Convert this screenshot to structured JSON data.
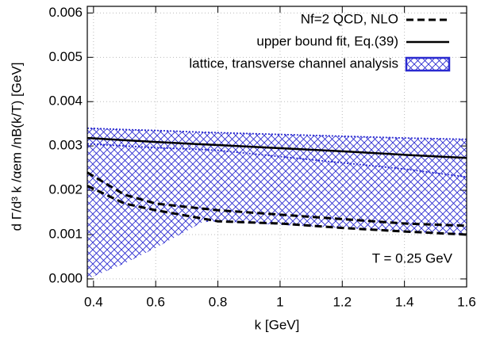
{
  "chart_data": {
    "type": "line",
    "xlabel": "k [GeV]",
    "ylabel": "d Γ/d³ k /αem /nB(k/T) [GeV]",
    "annotation": "T = 0.25 GeV",
    "xlim": [
      0.38,
      1.6
    ],
    "xticks": [
      0.4,
      0.6,
      0.8,
      1,
      1.2,
      1.4,
      1.6
    ],
    "ylim": [
      -0.00018,
      0.00615
    ],
    "yticks": [
      {
        "value": 0,
        "label": "0.000"
      },
      {
        "value": 0.001,
        "label": "0.001"
      },
      {
        "value": 0.002,
        "label": "0.002"
      },
      {
        "value": 0.003,
        "label": "0.003"
      },
      {
        "value": 0.004,
        "label": "0.004"
      },
      {
        "value": 0.005,
        "label": "0.005"
      },
      {
        "value": 0.006,
        "label": "0.006"
      }
    ],
    "grid": true,
    "legend": "top-right",
    "series": [
      {
        "name": "Nf=2 QCD, NLO",
        "style": "dashed",
        "color": "#000000",
        "x": [
          0.38,
          0.5,
          0.6,
          0.8,
          1.0,
          1.2,
          1.4,
          1.6
        ],
        "upper": [
          0.0024,
          0.0019,
          0.0017,
          0.00155,
          0.00145,
          0.00135,
          0.00125,
          0.0012
        ],
        "lower": [
          0.0021,
          0.0017,
          0.00155,
          0.0013,
          0.00125,
          0.00115,
          0.00107,
          0.001
        ]
      },
      {
        "name": "upper bound fit, Eq.(39)",
        "style": "solid",
        "color": "#000000",
        "x": [
          0.38,
          0.6,
          0.8,
          1.0,
          1.2,
          1.4,
          1.6
        ],
        "values": [
          0.00318,
          0.00309,
          0.00302,
          0.00295,
          0.00288,
          0.0028,
          0.00273
        ]
      },
      {
        "name": "lattice, transverse channel analysis",
        "style": "hatched-band",
        "color": "#2a2ad0",
        "x": [
          0.38,
          0.5,
          0.6,
          0.75,
          0.8,
          1.0,
          1.2,
          1.4,
          1.6
        ],
        "upper": [
          0.0034,
          0.00337,
          0.00335,
          0.00331,
          0.0033,
          0.00326,
          0.00322,
          0.00318,
          0.00315
        ],
        "lower": [
          0,
          0.00035,
          0.0007,
          0.00128,
          0.0013,
          0.00122,
          0.00115,
          0.00107,
          0.001
        ],
        "central": [
          0.00305,
          0.003,
          0.00296,
          0.00292,
          0.0029,
          0.00276,
          0.00262,
          0.00248,
          0.0023
        ]
      }
    ]
  }
}
